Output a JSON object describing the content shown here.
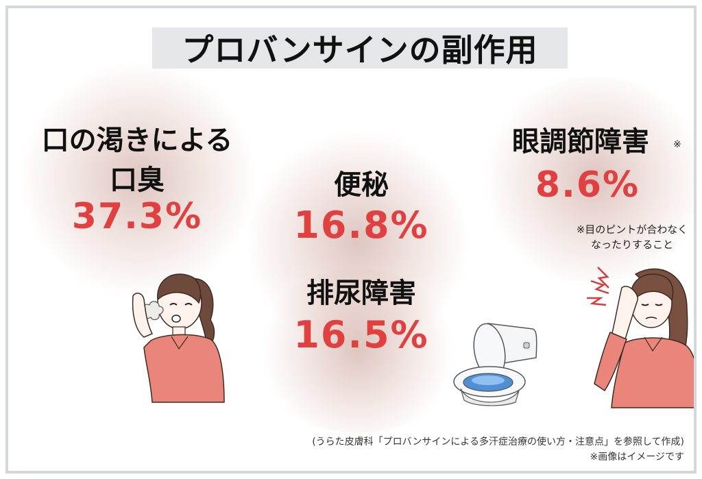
{
  "title": "プロバンサインの副作用",
  "effects": {
    "dry_mouth": {
      "label_line1": "口の渇きによる",
      "label_line2": "口臭",
      "percent": "37.3%"
    },
    "constipation": {
      "label": "便秘",
      "percent": "16.8%"
    },
    "urination": {
      "label": "排尿障害",
      "percent": "16.5%"
    },
    "accommodation": {
      "label": "眼調節障害",
      "mark": "※",
      "percent": "8.6%",
      "note_line1": "※目のピントが合わなく",
      "note_line2": "なったりすること"
    }
  },
  "footer": {
    "source": "(うらた皮膚科「プロバンサインによる多汗症治療の使い方・注意点」を参照して作成)",
    "image_note": "※画像はイメージです"
  },
  "colors": {
    "accent_red": "#e0403f",
    "title_bg": "#e4e6ea",
    "shirt": "#e9857a",
    "hair": "#6e4a3c"
  },
  "icons": [
    "woman-bad-breath-illustration",
    "toilet-illustration",
    "woman-eye-strain-illustration"
  ]
}
